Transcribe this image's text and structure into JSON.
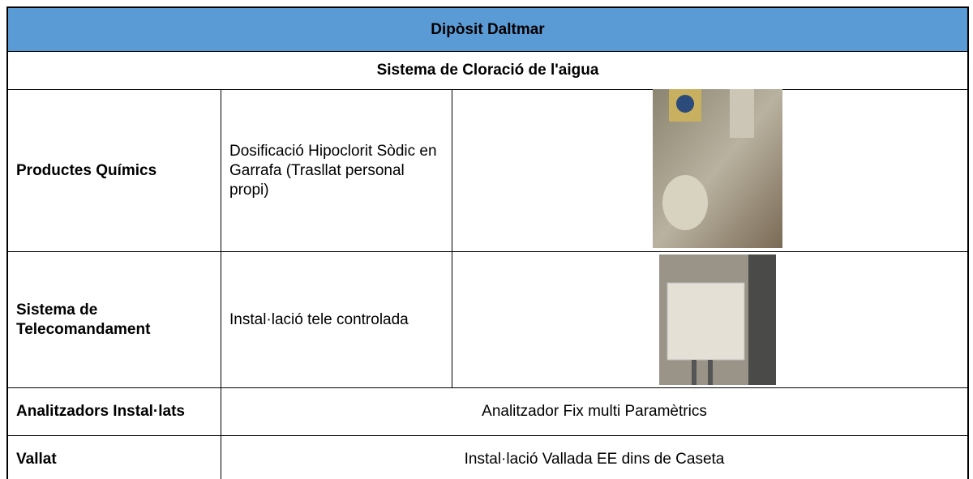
{
  "header": {
    "title": "Dipòsit Daltmar",
    "subtitle": "Sistema de Cloració de l'aigua"
  },
  "table": {
    "rows": [
      [
        "Productes Químics",
        "Dosificació Hipoclorit Sòdic en Garrafa (Trasllat personal propi)"
      ],
      [
        "Sistema de Telecomandament",
        "Instal·lació tele controlada"
      ],
      [
        "Analitzadors Instal·lats",
        "Analitzador Fix multi Paramètrics"
      ],
      [
        "Vallat",
        "Instal·lació Vallada EE dins de Caseta"
      ]
    ]
  }
}
